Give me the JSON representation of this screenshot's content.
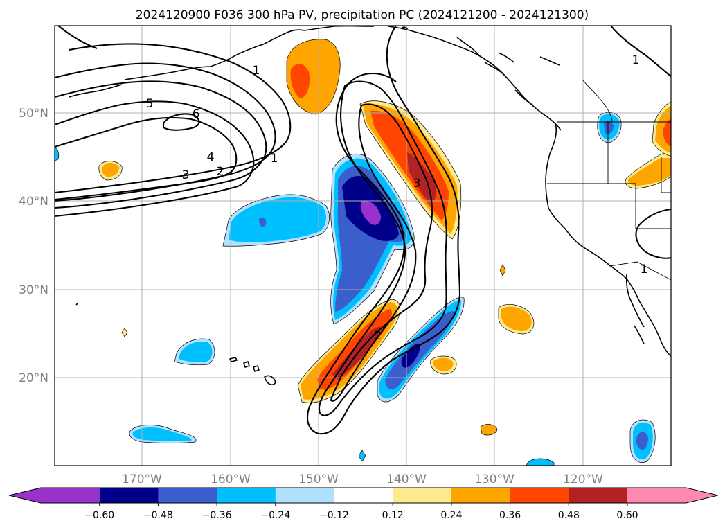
{
  "title": "2024120900 F036 300 hPa PV, precipitation PC (2024121200 - 2024121300)",
  "lat_labels": [
    "50°N",
    "40°N",
    "30°N",
    "20°N"
  ],
  "lon_labels": [
    "170°W",
    "160°W",
    "150°W",
    "140°W",
    "130°W",
    "120°W"
  ],
  "colorbar": {
    "ticks": [
      "−0.60",
      "−0.48",
      "−0.36",
      "−0.24",
      "−0.12",
      "0.12",
      "0.24",
      "0.36",
      "0.48",
      "0.60"
    ],
    "colors": [
      "#9932cc",
      "#00008b",
      "#3a5fcd",
      "#00bfff",
      "#b0e2ff",
      "#ffffff",
      "#ffe98f",
      "#ffa500",
      "#ff4500",
      "#b22222",
      "#ff8ab0"
    ]
  },
  "contour_labels": [
    "1",
    "5",
    "6",
    "4",
    "3",
    "2",
    "1",
    "3",
    "2",
    "1",
    "1"
  ],
  "colors": {
    "purple": "#9932cc",
    "navy": "#00008b",
    "blue": "#3a5fcd",
    "cyan": "#00bfff",
    "lightblue": "#b0e2ff",
    "yellow": "#ffe98f",
    "orange": "#ffa500",
    "red": "#ff4500",
    "darkred": "#b22222",
    "pink": "#ff8ab0"
  }
}
